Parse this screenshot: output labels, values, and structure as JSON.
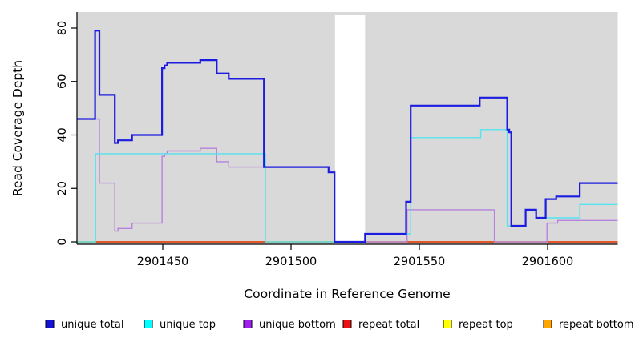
{
  "figure": {
    "x_axis_label": "Coordinate in Reference Genome",
    "y_axis_label": "Read Coverage Depth"
  },
  "legend": {
    "items": [
      {
        "label": "unique total",
        "color": "#1414d9"
      },
      {
        "label": "unique top",
        "color": "#00ffff"
      },
      {
        "label": "unique bottom",
        "color": "#a020f0"
      },
      {
        "label": "repeat total",
        "color": "#ee1111"
      },
      {
        "label": "repeat top",
        "color": "#ffff00"
      },
      {
        "label": "repeat bottom",
        "color": "#ffa500"
      }
    ]
  },
  "chart_data": {
    "type": "line",
    "subtype": "step-coverage",
    "title": "",
    "xlabel": "Coordinate in Reference Genome",
    "ylabel": "Read Coverage Depth",
    "xlim": [
      2901416.6,
      2901627.2
    ],
    "ylim": [
      0,
      86
    ],
    "x_ticks": [
      2901450,
      2901500,
      2901550,
      2901600
    ],
    "y_ticks": [
      0,
      20,
      40,
      60,
      80
    ],
    "plot_background": "#d9d9d9",
    "highlight_region": {
      "x0": 2901517.0,
      "x1": 2901528.7,
      "color": "#ffffff",
      "note": "white gap band"
    },
    "legend_position": "bottom",
    "grid": false,
    "series": [
      {
        "name": "repeat bottom",
        "color": "#ff9d00",
        "width": 1.5,
        "points": [
          [
            2901416.6,
            0
          ]
        ]
      },
      {
        "name": "repeat top",
        "color": "#ffff00",
        "width": 1.3,
        "points": [
          [
            2901416.6,
            0
          ]
        ]
      },
      {
        "name": "repeat total",
        "color": "#dd1111",
        "width": 1.3,
        "points": [
          [
            2901416.6,
            0
          ]
        ]
      },
      {
        "name": "unique bottom",
        "color": "#b682dd",
        "width": 1.4,
        "points": [
          [
            2901416.6,
            46
          ],
          [
            2901425.2,
            22
          ],
          [
            2901431.2,
            4
          ],
          [
            2901432.4,
            5
          ],
          [
            2901437.9,
            7
          ],
          [
            2901449.6,
            32
          ],
          [
            2901450.6,
            33
          ],
          [
            2901451.6,
            34
          ],
          [
            2901464.5,
            35
          ],
          [
            2901470.9,
            30
          ],
          [
            2901475.6,
            28
          ],
          [
            2901514.5,
            26
          ],
          [
            2901516.8,
            0
          ],
          [
            2901545.1,
            12
          ],
          [
            2901579.1,
            0
          ],
          [
            2901599.6,
            7
          ],
          [
            2901603.8,
            8
          ]
        ]
      },
      {
        "name": "unique top",
        "color": "#55e3ee",
        "width": 1.4,
        "points": [
          [
            2901416.6,
            0
          ],
          [
            2901423.7,
            33
          ],
          [
            2901489.9,
            0
          ],
          [
            2901528.7,
            3
          ],
          [
            2901546.5,
            39
          ],
          [
            2901573.8,
            42
          ],
          [
            2901584.1,
            6
          ],
          [
            2901591.3,
            12
          ],
          [
            2901595.4,
            9
          ],
          [
            2901612.4,
            14
          ]
        ]
      },
      {
        "name": "unique total",
        "color": "#1c1ce0",
        "width": 2.2,
        "points": [
          [
            2901416.6,
            46
          ],
          [
            2901423.5,
            79
          ],
          [
            2901425.2,
            55
          ],
          [
            2901431.2,
            37
          ],
          [
            2901432.4,
            38
          ],
          [
            2901437.9,
            40
          ],
          [
            2901449.6,
            65
          ],
          [
            2901450.6,
            66
          ],
          [
            2901451.6,
            67
          ],
          [
            2901464.5,
            68
          ],
          [
            2901470.9,
            63
          ],
          [
            2901475.6,
            61
          ],
          [
            2901489.3,
            28
          ],
          [
            2901514.5,
            26
          ],
          [
            2901516.8,
            0
          ],
          [
            2901528.7,
            3
          ],
          [
            2901544.7,
            15
          ],
          [
            2901546.5,
            51
          ],
          [
            2901573.4,
            54
          ],
          [
            2901584.1,
            42
          ],
          [
            2901584.9,
            41
          ],
          [
            2901585.7,
            6
          ],
          [
            2901591.3,
            12
          ],
          [
            2901595.4,
            9
          ],
          [
            2901599.1,
            16
          ],
          [
            2901603.2,
            17
          ],
          [
            2901612.4,
            22
          ]
        ]
      }
    ]
  }
}
